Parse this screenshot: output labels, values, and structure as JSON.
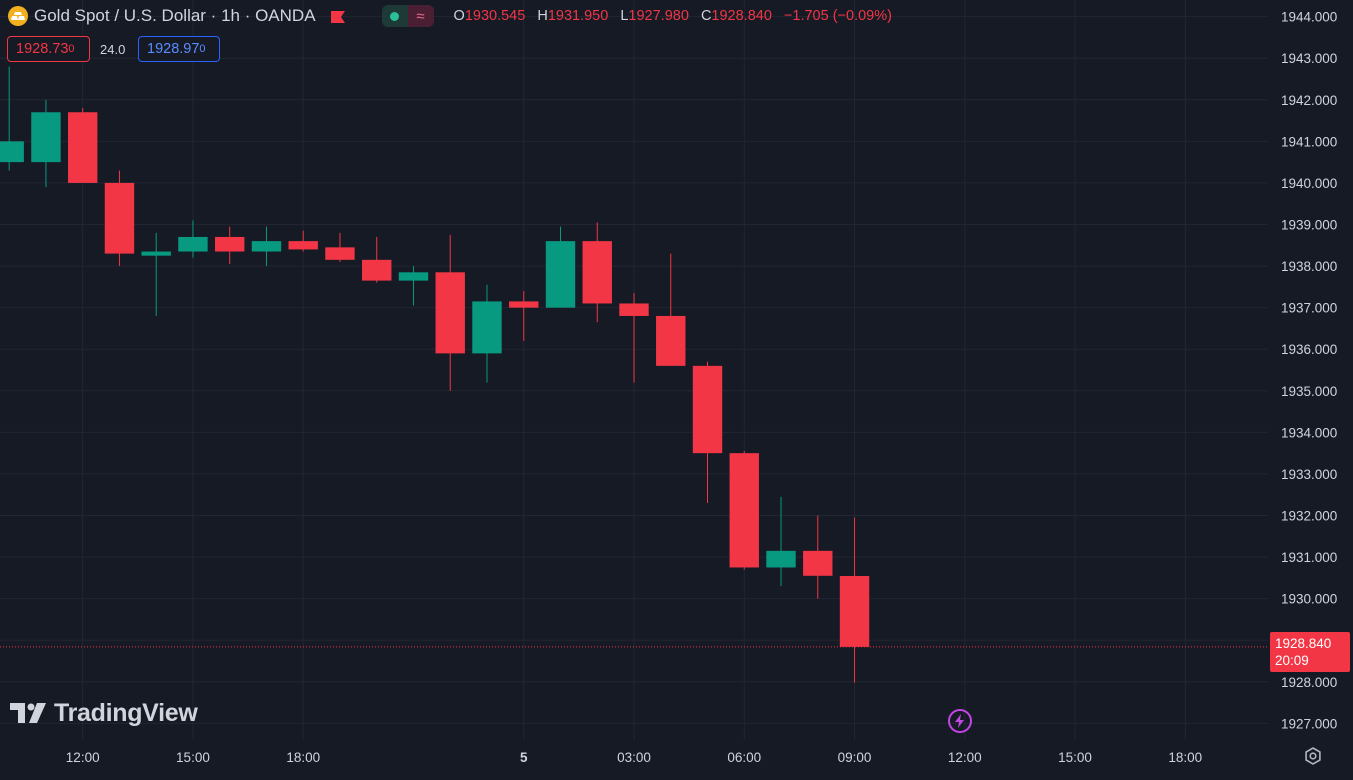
{
  "header": {
    "symbol_title": "Gold Spot / U.S. Dollar · 1h · OANDA",
    "ohlc": {
      "o_label": "O",
      "o": "1930.545",
      "h_label": "H",
      "h": "1931.950",
      "l_label": "L",
      "l": "1927.980",
      "c_label": "C",
      "c": "1928.840",
      "change": "−1.705 (−0.09%)"
    },
    "wave_glyph": "≈"
  },
  "trade": {
    "sell_main": "1928.73",
    "sell_last": "0",
    "spread": "24.0",
    "buy_main": "1928.97",
    "buy_last": "0"
  },
  "last_price": {
    "value": "1928.840",
    "countdown": "20:09"
  },
  "watermark": "TradingView",
  "icons": [
    "gold-coin-icon",
    "flag-icon",
    "status-dot-icon",
    "wave-icon",
    "tradingview-logo-icon",
    "flash-icon",
    "settings-icon"
  ],
  "colors": {
    "background": "#161a25",
    "up": "#089981",
    "down": "#f23645",
    "grid": "#232632",
    "text": "#d1d4dc"
  },
  "chart_data": {
    "type": "candlestick",
    "ylim": [
      1926.6,
      1944.4
    ],
    "y_ticks": [
      "1944.000",
      "1943.000",
      "1942.000",
      "1941.000",
      "1940.000",
      "1939.000",
      "1938.000",
      "1937.000",
      "1936.000",
      "1935.000",
      "1934.000",
      "1933.000",
      "1932.000",
      "1931.000",
      "1930.000",
      "1929.000",
      "1928.000",
      "1927.000"
    ],
    "x_ticks": [
      "12:00",
      "15:00",
      "18:00",
      "5",
      "03:00",
      "06:00",
      "09:00",
      "12:00",
      "15:00",
      "18:00"
    ],
    "x_tick_hours": [
      12,
      15,
      18,
      24,
      27,
      30,
      33,
      36,
      39,
      42
    ],
    "x_range_hours": [
      9.75,
      44.25
    ],
    "candles": [
      {
        "t": 10,
        "o": 1940.5,
        "h": 1942.8,
        "l": 1940.3,
        "c": 1941.0
      },
      {
        "t": 11,
        "o": 1940.5,
        "h": 1942.0,
        "l": 1939.9,
        "c": 1941.7
      },
      {
        "t": 12,
        "o": 1941.7,
        "h": 1941.8,
        "l": 1940.0,
        "c": 1940.0
      },
      {
        "t": 13,
        "o": 1940.0,
        "h": 1940.3,
        "l": 1938.0,
        "c": 1938.3
      },
      {
        "t": 14,
        "o": 1938.25,
        "h": 1938.8,
        "l": 1936.8,
        "c": 1938.35
      },
      {
        "t": 15,
        "o": 1938.35,
        "h": 1939.1,
        "l": 1938.2,
        "c": 1938.7
      },
      {
        "t": 16,
        "o": 1938.7,
        "h": 1938.95,
        "l": 1938.05,
        "c": 1938.35
      },
      {
        "t": 17,
        "o": 1938.35,
        "h": 1938.95,
        "l": 1938.0,
        "c": 1938.6
      },
      {
        "t": 18,
        "o": 1938.6,
        "h": 1938.85,
        "l": 1938.35,
        "c": 1938.4
      },
      {
        "t": 19,
        "o": 1938.45,
        "h": 1938.8,
        "l": 1938.1,
        "c": 1938.15
      },
      {
        "t": 20,
        "o": 1938.15,
        "h": 1938.7,
        "l": 1937.6,
        "c": 1937.65
      },
      {
        "t": 21,
        "o": 1937.65,
        "h": 1938.0,
        "l": 1937.05,
        "c": 1937.85
      },
      {
        "t": 22,
        "o": 1937.85,
        "h": 1938.75,
        "l": 1935.0,
        "c": 1935.9
      },
      {
        "t": 23,
        "o": 1935.9,
        "h": 1937.55,
        "l": 1935.2,
        "c": 1937.15
      },
      {
        "t": 24,
        "o": 1937.15,
        "h": 1937.4,
        "l": 1936.2,
        "c": 1937.0
      },
      {
        "t": 25,
        "o": 1937.0,
        "h": 1938.95,
        "l": 1937.0,
        "c": 1938.6
      },
      {
        "t": 26,
        "o": 1938.6,
        "h": 1939.05,
        "l": 1936.65,
        "c": 1937.1
      },
      {
        "t": 27,
        "o": 1937.1,
        "h": 1937.35,
        "l": 1935.2,
        "c": 1936.8
      },
      {
        "t": 28,
        "o": 1936.8,
        "h": 1938.3,
        "l": 1935.6,
        "c": 1935.6
      },
      {
        "t": 29,
        "o": 1935.6,
        "h": 1935.7,
        "l": 1932.3,
        "c": 1933.5
      },
      {
        "t": 30,
        "o": 1933.5,
        "h": 1933.55,
        "l": 1930.7,
        "c": 1930.75
      },
      {
        "t": 31,
        "o": 1930.75,
        "h": 1932.45,
        "l": 1930.3,
        "c": 1931.15
      },
      {
        "t": 32,
        "o": 1931.15,
        "h": 1932.0,
        "l": 1930.0,
        "c": 1930.55
      },
      {
        "t": 33,
        "o": 1930.545,
        "h": 1931.95,
        "l": 1927.98,
        "c": 1928.84
      }
    ]
  }
}
